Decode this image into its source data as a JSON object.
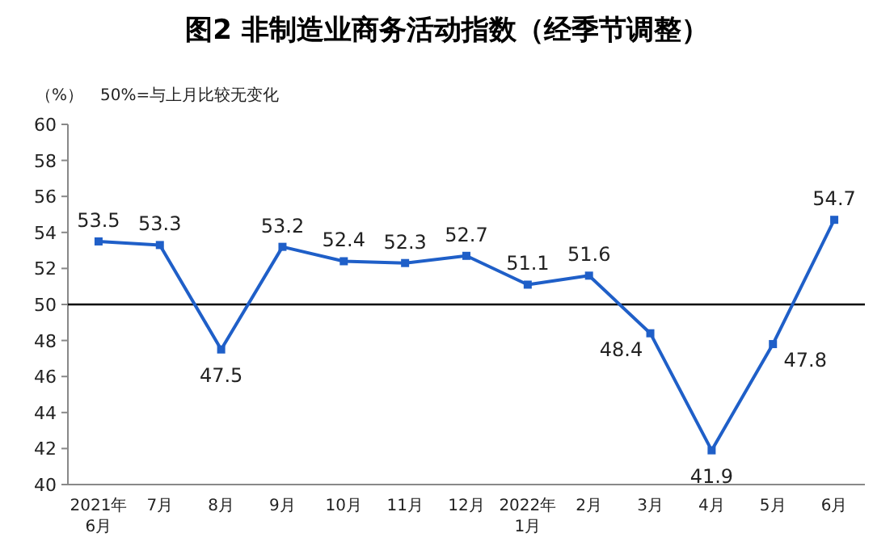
{
  "chart_data": {
    "type": "line",
    "title": "图2  非制造业商务活动指数（经季节调整）",
    "annotations": [
      "（%）",
      "50%=与上月比较无变化"
    ],
    "categories": [
      "2021年\n6月",
      "7月",
      "8月",
      "9月",
      "10月",
      "11月",
      "12月",
      "2022年\n1月",
      "2月",
      "3月",
      "4月",
      "5月",
      "6月"
    ],
    "series": [
      {
        "color": "#1f5fc8",
        "values": [
          53.5,
          53.3,
          47.5,
          53.2,
          52.4,
          52.3,
          52.7,
          51.1,
          51.6,
          48.4,
          41.9,
          47.8,
          54.7
        ]
      }
    ],
    "ylim": [
      40,
      60
    ],
    "yticks": [
      40,
      42,
      44,
      46,
      48,
      50,
      52,
      54,
      56,
      58,
      60
    ],
    "ref_lines": [
      {
        "axis": "y",
        "value": 50,
        "color": "#000000"
      }
    ],
    "marker": "square",
    "data_labels": true
  }
}
